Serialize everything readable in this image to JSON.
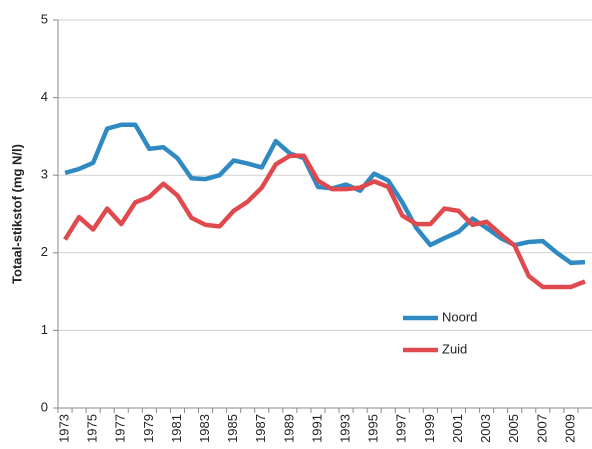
{
  "chart_data": {
    "type": "line",
    "y_label": "Totaal-stikstof (mg N/l)",
    "categories": [
      "1973",
      null,
      "1975",
      null,
      "1977",
      null,
      "1979",
      null,
      "1981",
      null,
      "1983",
      null,
      "1985",
      null,
      "1987",
      null,
      "1989",
      null,
      "1991",
      null,
      "1993",
      null,
      "1995",
      null,
      "1997",
      null,
      "1999",
      null,
      "2001",
      null,
      "2003",
      null,
      "2005",
      null,
      "2007",
      null,
      "2009",
      null
    ],
    "series": [
      {
        "name": "Noord",
        "color": "#2f8ac4",
        "values": [
          3.03,
          3.08,
          3.16,
          3.6,
          3.65,
          3.65,
          3.34,
          3.36,
          3.22,
          2.96,
          2.95,
          3.0,
          3.19,
          3.15,
          3.1,
          3.44,
          3.28,
          3.22,
          2.85,
          2.83,
          2.88,
          2.8,
          3.02,
          2.93,
          2.65,
          2.32,
          2.1,
          2.19,
          2.27,
          2.44,
          2.32,
          2.19,
          2.1,
          2.14,
          2.15,
          2.0,
          1.87,
          1.88
        ]
      },
      {
        "name": "Zuid",
        "color": "#e04a4f",
        "values": [
          2.17,
          2.46,
          2.3,
          2.57,
          2.37,
          2.65,
          2.72,
          2.89,
          2.74,
          2.45,
          2.36,
          2.34,
          2.54,
          2.66,
          2.84,
          3.14,
          3.25,
          3.25,
          2.93,
          2.82,
          2.82,
          2.84,
          2.92,
          2.85,
          2.48,
          2.37,
          2.37,
          2.57,
          2.54,
          2.36,
          2.4,
          2.24,
          2.09,
          1.7,
          1.56,
          1.56,
          1.56,
          1.63
        ]
      }
    ],
    "ylim": [
      0,
      5
    ],
    "yticks": [
      0,
      1,
      2,
      3,
      4,
      5
    ],
    "grid": true
  }
}
